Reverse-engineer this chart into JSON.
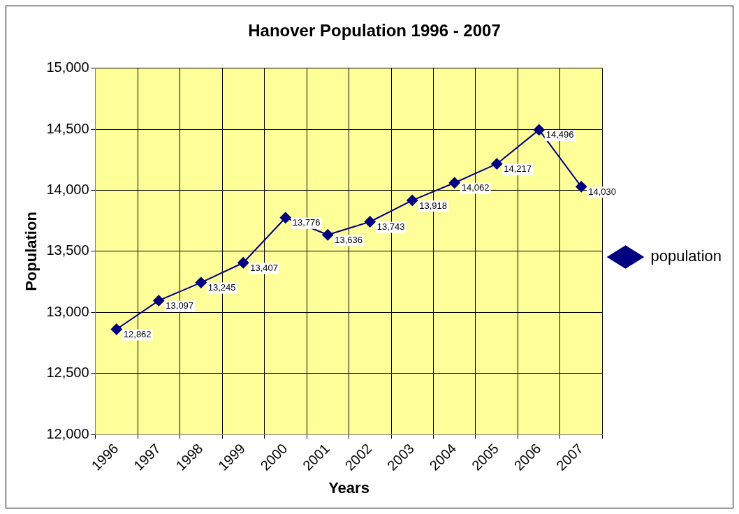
{
  "chart_data": {
    "type": "line",
    "title": "Hanover Population 1996 - 2007",
    "xlabel": "Years",
    "ylabel": "Population",
    "categories": [
      "1996",
      "1997",
      "1998",
      "1999",
      "2000",
      "2001",
      "2002",
      "2003",
      "2004",
      "2005",
      "2006",
      "2007"
    ],
    "series": [
      {
        "name": "population",
        "color": "#000080",
        "values": [
          12862,
          13097,
          13245,
          13407,
          13776,
          13636,
          13743,
          13918,
          14062,
          14217,
          14496,
          14030
        ],
        "value_labels": [
          "12,862",
          "13,097",
          "13,245",
          "13,407",
          "13,776",
          "13,636",
          "13,743",
          "13,918",
          "14,062",
          "14,217",
          "14,496",
          "14,030"
        ]
      }
    ],
    "ylim": [
      12000,
      15000
    ],
    "yticks": [
      {
        "value": 12000,
        "label": "12,000"
      },
      {
        "value": 12500,
        "label": "12,500"
      },
      {
        "value": 13000,
        "label": "13,000"
      },
      {
        "value": 13500,
        "label": "13,500"
      },
      {
        "value": 14000,
        "label": "14,000"
      },
      {
        "value": 14500,
        "label": "14,500"
      },
      {
        "value": 15000,
        "label": "15,000"
      }
    ],
    "grid": true,
    "legend": "right",
    "marker": "diamond",
    "line_style": "solid"
  }
}
